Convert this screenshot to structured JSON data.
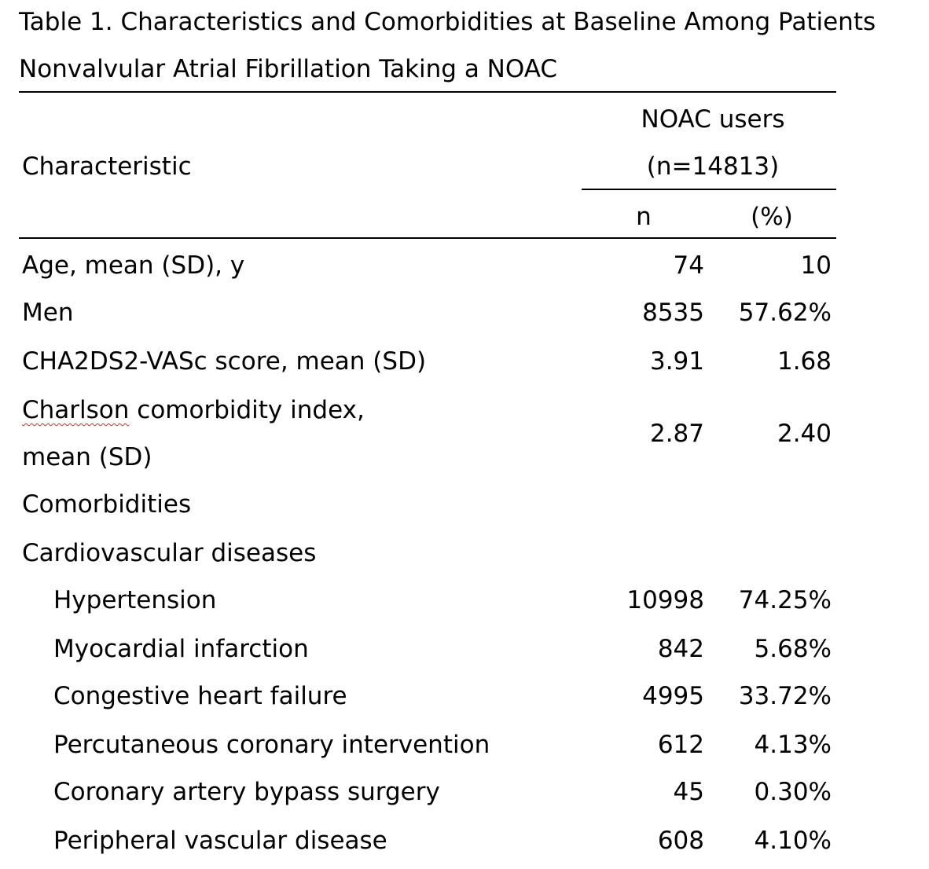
{
  "title": {
    "line1": "Table 1. Characteristics and Comorbidities at Baseline Among Patients",
    "line2": "Nonvalvular Atrial Fibrillation Taking a NOAC"
  },
  "header": {
    "characteristic": "Characteristic",
    "group_line1": "NOAC users",
    "group_line2": "(n=14813)",
    "col_n": "n",
    "col_pct": "(%)"
  },
  "rows": [
    {
      "label": "Age, mean (SD), y",
      "n": "74",
      "pct": "10"
    },
    {
      "label": "Men",
      "n": "8535",
      "pct": "57.62%"
    },
    {
      "label": "CHA2DS2-VASc score, mean (SD)",
      "n": "3.91",
      "pct": "1.68"
    },
    {
      "label_word": "Charlson",
      "label_rest": " comorbidity index,",
      "label_line2": "mean (SD)",
      "n": "2.87",
      "pct": "2.40"
    },
    {
      "label": "Comorbidities"
    },
    {
      "label": "Cardiovascular diseases"
    },
    {
      "label": "Hypertension",
      "n": "10998",
      "pct": "74.25%"
    },
    {
      "label": "Myocardial infarction",
      "n": "842",
      "pct": "5.68%"
    },
    {
      "label": "Congestive heart failure",
      "n": "4995",
      "pct": "33.72%"
    },
    {
      "label": "Percutaneous coronary intervention",
      "n": "612",
      "pct": "4.13%"
    },
    {
      "label": "Coronary artery bypass surgery",
      "n": "45",
      "pct": "0.30%"
    },
    {
      "label": "Peripheral vascular disease",
      "n": "608",
      "pct": "4.10%"
    }
  ]
}
